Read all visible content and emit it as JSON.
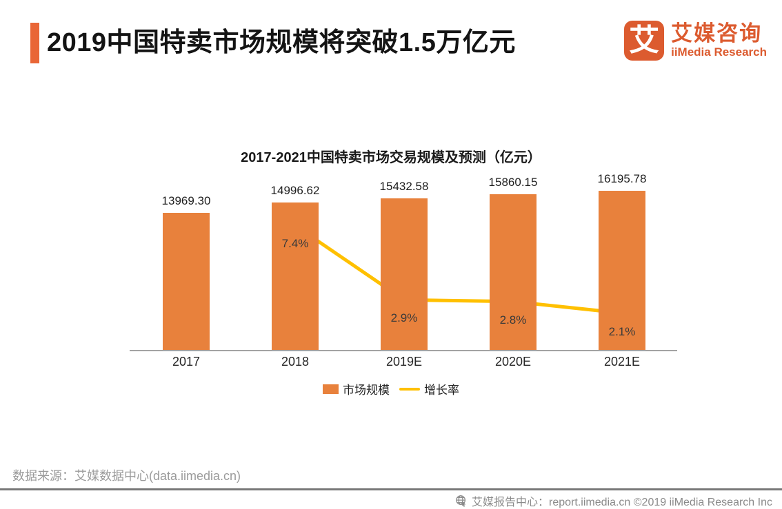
{
  "header": {
    "title": "2019中国特卖市场规模将突破1.5万亿元",
    "logo": {
      "glyph": "艾",
      "name_cn": "艾媒咨询",
      "name_en": "iiMedia Research"
    }
  },
  "chart_data": {
    "type": "combo_bar_line",
    "title": "2017-2021中国特卖市场交易规模及预测（亿元）",
    "categories": [
      "2017",
      "2018",
      "2019E",
      "2020E",
      "2021E"
    ],
    "series": [
      {
        "name": "市场规模",
        "type": "bar",
        "color": "#E8813C",
        "values": [
          13969.3,
          14996.62,
          15432.58,
          15860.15,
          16195.78
        ],
        "labels": [
          "13969.30",
          "14996.62",
          "15432.58",
          "15860.15",
          "16195.78"
        ]
      },
      {
        "name": "增长率",
        "type": "line",
        "color": "#FFC000",
        "values": [
          null,
          7.4,
          2.9,
          2.8,
          2.1
        ],
        "labels": [
          null,
          "7.4%",
          "2.9%",
          "2.8%",
          "2.1%"
        ]
      }
    ],
    "unit": "亿元",
    "grid": false,
    "legend_position": "bottom",
    "xlabel": "",
    "ylabel": ""
  },
  "source": {
    "text": "数据来源：艾媒数据中心(data.iimedia.cn)"
  },
  "footer": {
    "text": "艾媒报告中心：report.iimedia.cn  ©2019  iiMedia Research Inc"
  },
  "colors": {
    "accent_bar": "#E96636",
    "brand": "#DC5B2F",
    "bar": "#E8813C",
    "line": "#FFC000",
    "axis": "#a3a3a3",
    "muted_text": "#9b9b9b"
  }
}
